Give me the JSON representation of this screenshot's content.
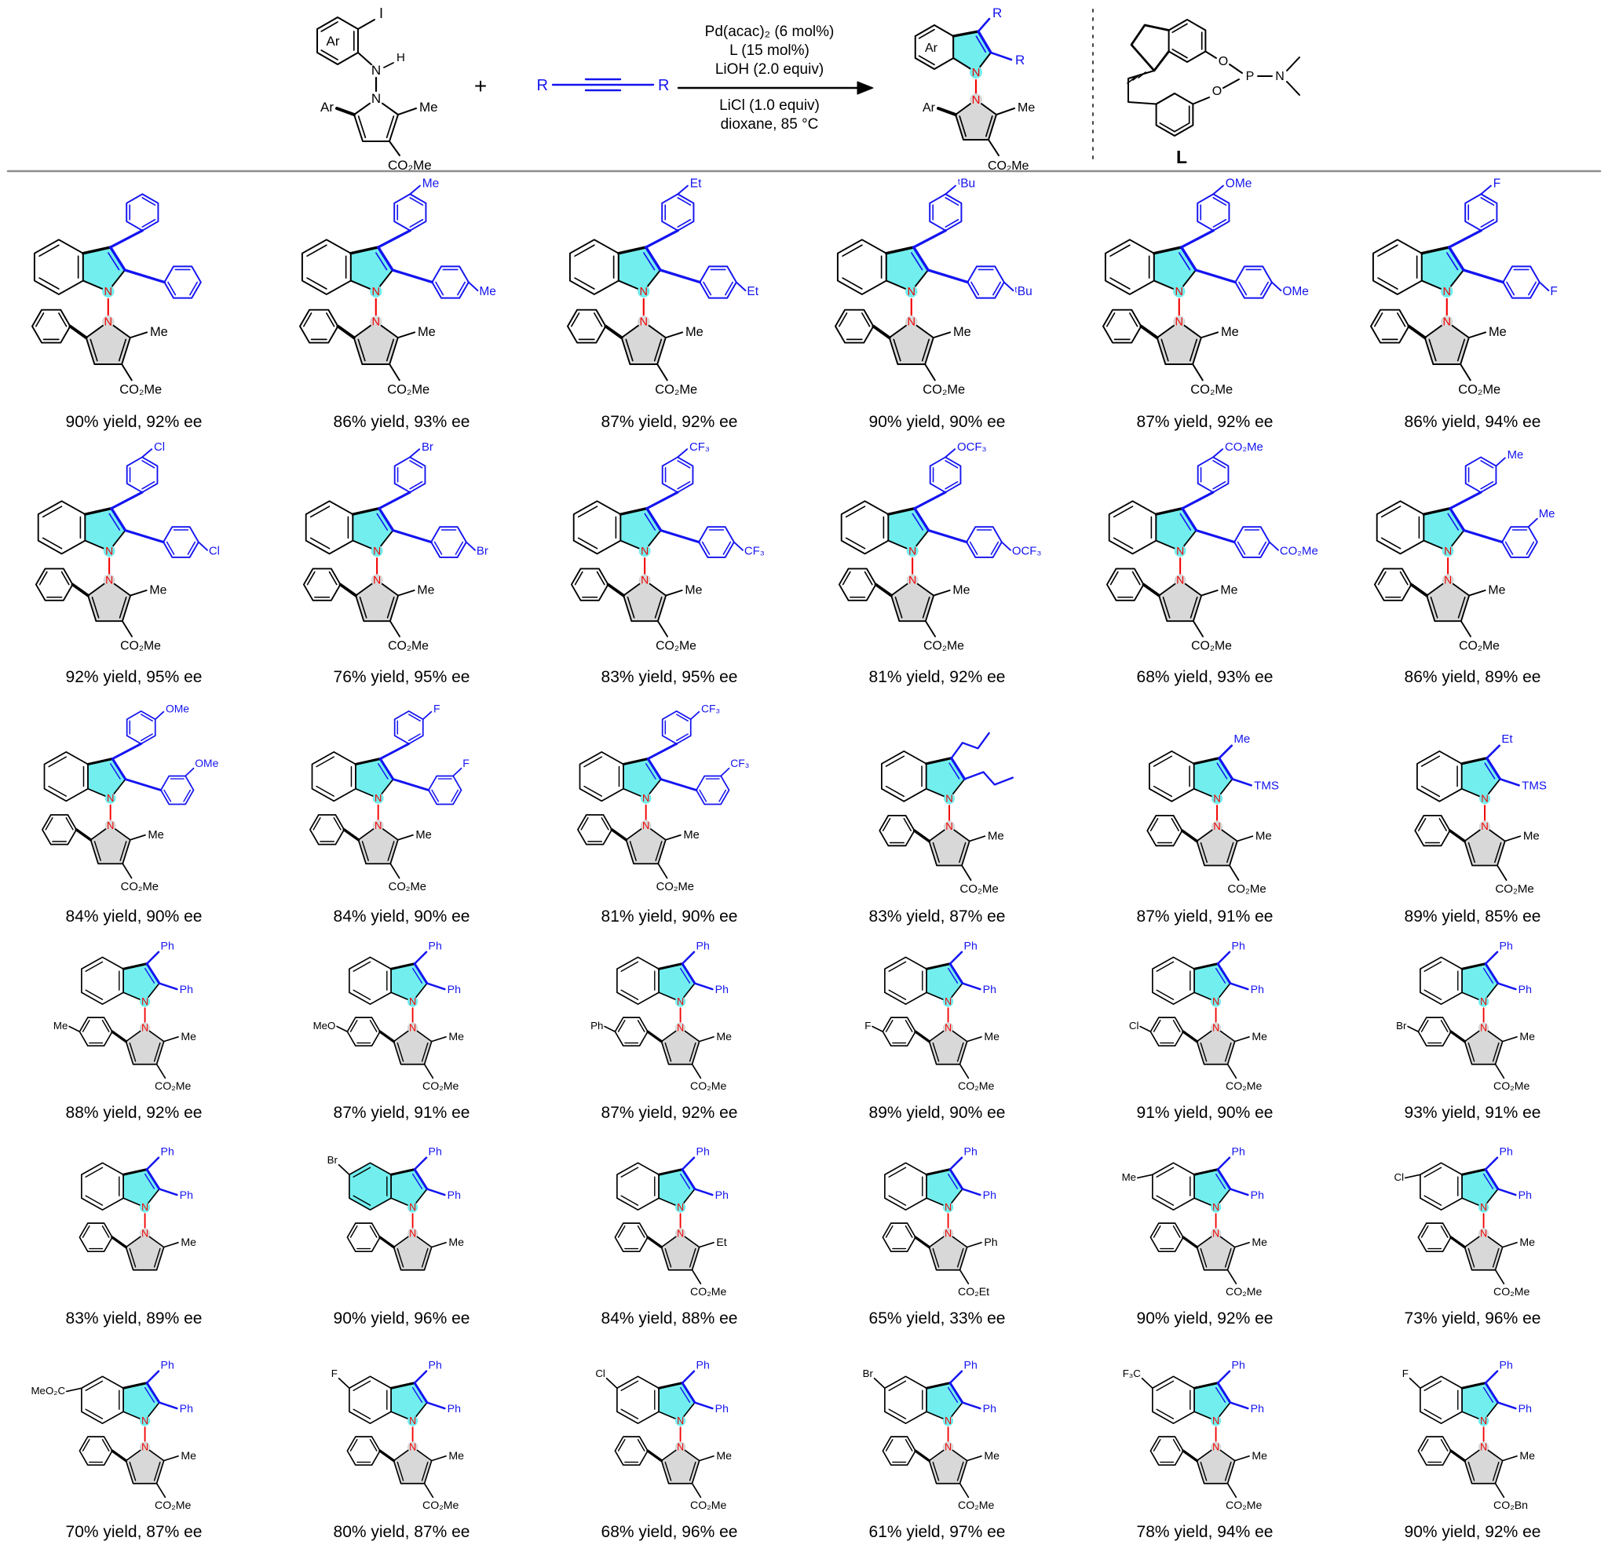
{
  "colors": {
    "blue": "#1414f0",
    "red": "#f20000",
    "cyan": "#72eeee",
    "gray": "#d8d8d8",
    "black": "#000000",
    "divider": "#8c8c8c"
  },
  "atoms": {
    "n": "N"
  },
  "scheme": {
    "substrate": {
      "ring_label": "Ar",
      "halide": "I",
      "amine_n": "N",
      "amine_h": "H",
      "pyrrole_n": "N",
      "aryl": "Ar",
      "methyl": "Me",
      "ester": "CO₂Me"
    },
    "plus": "+",
    "alkyne": {
      "left": "R",
      "right": "R"
    },
    "arrow": {
      "above": [
        "Pd(acac)₂ (6 mol%)",
        "L (15 mol%)",
        "LiOH (2.0 equiv)"
      ],
      "below": [
        "LiCl (1.0 equiv)",
        "dioxane, 85 °C"
      ]
    },
    "product": {
      "ring_label": "Ar",
      "r3": "R",
      "r2": "R",
      "indole_n": "N",
      "pyrrole_n": "N",
      "aryl": "Ar",
      "methyl": "Me",
      "ester": "CO₂Me"
    },
    "ligand": {
      "o_top": "O",
      "o_bottom": "O",
      "p": "P",
      "n": "N",
      "label": "L"
    }
  },
  "compounds": [
    {
      "c3": {
        "kind": "ring",
        "sub": null,
        "pos": null
      },
      "c2": {
        "kind": "ring",
        "sub": null,
        "pos": null
      },
      "n_aryl_sub": null,
      "indole_sub": null,
      "indole_highlight": false,
      "pyrrole_c2": "Me",
      "ester": "CO₂Me",
      "result": "90% yield, 92% ee"
    },
    {
      "c3": {
        "kind": "ring",
        "sub": "Me",
        "pos": "para"
      },
      "c2": {
        "kind": "ring",
        "sub": "Me",
        "pos": "para"
      },
      "n_aryl_sub": null,
      "indole_sub": null,
      "indole_highlight": false,
      "pyrrole_c2": "Me",
      "ester": "CO₂Me",
      "result": "86% yield, 93% ee"
    },
    {
      "c3": {
        "kind": "ring",
        "sub": "Et",
        "pos": "para"
      },
      "c2": {
        "kind": "ring",
        "sub": "Et",
        "pos": "para"
      },
      "n_aryl_sub": null,
      "indole_sub": null,
      "indole_highlight": false,
      "pyrrole_c2": "Me",
      "ester": "CO₂Me",
      "result": "87% yield, 92% ee"
    },
    {
      "c3": {
        "kind": "ring",
        "sub": "ᵗBu",
        "pos": "para"
      },
      "c2": {
        "kind": "ring",
        "sub": "ᵗBu",
        "pos": "para"
      },
      "n_aryl_sub": null,
      "indole_sub": null,
      "indole_highlight": false,
      "pyrrole_c2": "Me",
      "ester": "CO₂Me",
      "result": "90% yield, 90% ee"
    },
    {
      "c3": {
        "kind": "ring",
        "sub": "OMe",
        "pos": "para"
      },
      "c2": {
        "kind": "ring",
        "sub": "OMe",
        "pos": "para"
      },
      "n_aryl_sub": null,
      "indole_sub": null,
      "indole_highlight": false,
      "pyrrole_c2": "Me",
      "ester": "CO₂Me",
      "result": "87% yield, 92% ee"
    },
    {
      "c3": {
        "kind": "ring",
        "sub": "F",
        "pos": "para"
      },
      "c2": {
        "kind": "ring",
        "sub": "F",
        "pos": "para"
      },
      "n_aryl_sub": null,
      "indole_sub": null,
      "indole_highlight": false,
      "pyrrole_c2": "Me",
      "ester": "CO₂Me",
      "result": "86% yield, 94% ee"
    },
    {
      "c3": {
        "kind": "ring",
        "sub": "Cl",
        "pos": "para"
      },
      "c2": {
        "kind": "ring",
        "sub": "Cl",
        "pos": "para"
      },
      "n_aryl_sub": null,
      "indole_sub": null,
      "indole_highlight": false,
      "pyrrole_c2": "Me",
      "ester": "CO₂Me",
      "result": "92% yield, 95% ee"
    },
    {
      "c3": {
        "kind": "ring",
        "sub": "Br",
        "pos": "para"
      },
      "c2": {
        "kind": "ring",
        "sub": "Br",
        "pos": "para"
      },
      "n_aryl_sub": null,
      "indole_sub": null,
      "indole_highlight": false,
      "pyrrole_c2": "Me",
      "ester": "CO₂Me",
      "result": "76% yield, 95% ee"
    },
    {
      "c3": {
        "kind": "ring",
        "sub": "CF₃",
        "pos": "para"
      },
      "c2": {
        "kind": "ring",
        "sub": "CF₃",
        "pos": "para"
      },
      "n_aryl_sub": null,
      "indole_sub": null,
      "indole_highlight": false,
      "pyrrole_c2": "Me",
      "ester": "CO₂Me",
      "result": "83% yield, 95% ee"
    },
    {
      "c3": {
        "kind": "ring",
        "sub": "OCF₃",
        "pos": "para"
      },
      "c2": {
        "kind": "ring",
        "sub": "OCF₃",
        "pos": "para"
      },
      "n_aryl_sub": null,
      "indole_sub": null,
      "indole_highlight": false,
      "pyrrole_c2": "Me",
      "ester": "CO₂Me",
      "result": "81% yield, 92% ee"
    },
    {
      "c3": {
        "kind": "ring",
        "sub": "CO₂Me",
        "pos": "para"
      },
      "c2": {
        "kind": "ring",
        "sub": "CO₂Me",
        "pos": "para"
      },
      "n_aryl_sub": null,
      "indole_sub": null,
      "indole_highlight": false,
      "pyrrole_c2": "Me",
      "ester": "CO₂Me",
      "result": "68% yield, 93% ee"
    },
    {
      "c3": {
        "kind": "ring",
        "sub": "Me",
        "pos": "meta"
      },
      "c2": {
        "kind": "ring",
        "sub": "Me",
        "pos": "meta"
      },
      "n_aryl_sub": null,
      "indole_sub": null,
      "indole_highlight": false,
      "pyrrole_c2": "Me",
      "ester": "CO₂Me",
      "result": "86% yield, 89% ee"
    },
    {
      "c3": {
        "kind": "ring",
        "sub": "OMe",
        "pos": "meta"
      },
      "c2": {
        "kind": "ring",
        "sub": "OMe",
        "pos": "meta"
      },
      "n_aryl_sub": null,
      "indole_sub": null,
      "indole_highlight": false,
      "pyrrole_c2": "Me",
      "ester": "CO₂Me",
      "result": "84% yield, 90% ee"
    },
    {
      "c3": {
        "kind": "ring",
        "sub": "F",
        "pos": "meta"
      },
      "c2": {
        "kind": "ring",
        "sub": "F",
        "pos": "meta"
      },
      "n_aryl_sub": null,
      "indole_sub": null,
      "indole_highlight": false,
      "pyrrole_c2": "Me",
      "ester": "CO₂Me",
      "result": "84% yield, 90% ee"
    },
    {
      "c3": {
        "kind": "ring",
        "sub": "CF₃",
        "pos": "meta"
      },
      "c2": {
        "kind": "ring",
        "sub": "CF₃",
        "pos": "meta"
      },
      "n_aryl_sub": null,
      "indole_sub": null,
      "indole_highlight": false,
      "pyrrole_c2": "Me",
      "ester": "CO₂Me",
      "result": "81% yield, 90% ee"
    },
    {
      "c3": {
        "kind": "chain"
      },
      "c2": {
        "kind": "chain"
      },
      "n_aryl_sub": null,
      "indole_sub": null,
      "indole_highlight": false,
      "pyrrole_c2": "Me",
      "ester": "CO₂Me",
      "result": "83% yield, 87% ee"
    },
    {
      "c3": {
        "kind": "text",
        "label": "Me"
      },
      "c2": {
        "kind": "text",
        "label": "TMS"
      },
      "n_aryl_sub": null,
      "indole_sub": null,
      "indole_highlight": false,
      "pyrrole_c2": "Me",
      "ester": "CO₂Me",
      "result": "87% yield, 91% ee"
    },
    {
      "c3": {
        "kind": "text",
        "label": "Et"
      },
      "c2": {
        "kind": "text",
        "label": "TMS"
      },
      "n_aryl_sub": null,
      "indole_sub": null,
      "indole_highlight": false,
      "pyrrole_c2": "Me",
      "ester": "CO₂Me",
      "result": "89% yield, 85% ee"
    },
    {
      "c3": {
        "kind": "text",
        "label": "Ph"
      },
      "c2": {
        "kind": "text",
        "label": "Ph"
      },
      "n_aryl_sub": "Me",
      "indole_sub": null,
      "indole_highlight": false,
      "pyrrole_c2": "Me",
      "ester": "CO₂Me",
      "result": "88% yield, 92% ee"
    },
    {
      "c3": {
        "kind": "text",
        "label": "Ph"
      },
      "c2": {
        "kind": "text",
        "label": "Ph"
      },
      "n_aryl_sub": "MeO",
      "indole_sub": null,
      "indole_highlight": false,
      "pyrrole_c2": "Me",
      "ester": "CO₂Me",
      "result": "87% yield, 91% ee"
    },
    {
      "c3": {
        "kind": "text",
        "label": "Ph"
      },
      "c2": {
        "kind": "text",
        "label": "Ph"
      },
      "n_aryl_sub": "Ph",
      "indole_sub": null,
      "indole_highlight": false,
      "pyrrole_c2": "Me",
      "ester": "CO₂Me",
      "result": "87% yield, 92% ee"
    },
    {
      "c3": {
        "kind": "text",
        "label": "Ph"
      },
      "c2": {
        "kind": "text",
        "label": "Ph"
      },
      "n_aryl_sub": "F",
      "indole_sub": null,
      "indole_highlight": false,
      "pyrrole_c2": "Me",
      "ester": "CO₂Me",
      "result": "89% yield, 90% ee"
    },
    {
      "c3": {
        "kind": "text",
        "label": "Ph"
      },
      "c2": {
        "kind": "text",
        "label": "Ph"
      },
      "n_aryl_sub": "Cl",
      "indole_sub": null,
      "indole_highlight": false,
      "pyrrole_c2": "Me",
      "ester": "CO₂Me",
      "result": "91% yield, 90% ee"
    },
    {
      "c3": {
        "kind": "text",
        "label": "Ph"
      },
      "c2": {
        "kind": "text",
        "label": "Ph"
      },
      "n_aryl_sub": "Br",
      "indole_sub": null,
      "indole_highlight": false,
      "pyrrole_c2": "Me",
      "ester": "CO₂Me",
      "result": "93% yield, 91% ee"
    },
    {
      "c3": {
        "kind": "text",
        "label": "Ph"
      },
      "c2": {
        "kind": "text",
        "label": "Ph"
      },
      "n_aryl_sub": null,
      "indole_sub": null,
      "indole_highlight": false,
      "pyrrole_c2": "Me",
      "ester": null,
      "result": "83% yield, 89% ee"
    },
    {
      "c3": {
        "kind": "text",
        "label": "Ph"
      },
      "c2": {
        "kind": "text",
        "label": "Ph"
      },
      "n_aryl_sub": null,
      "indole_sub": {
        "label": "Br",
        "pos": "top"
      },
      "indole_highlight": true,
      "pyrrole_c2": "Me",
      "ester": null,
      "result": "90% yield, 96% ee"
    },
    {
      "c3": {
        "kind": "text",
        "label": "Ph"
      },
      "c2": {
        "kind": "text",
        "label": "Ph"
      },
      "n_aryl_sub": null,
      "indole_sub": null,
      "indole_highlight": false,
      "pyrrole_c2": "Et",
      "ester": "CO₂Me",
      "result": "84% yield, 88% ee"
    },
    {
      "c3": {
        "kind": "text",
        "label": "Ph"
      },
      "c2": {
        "kind": "text",
        "label": "Ph"
      },
      "n_aryl_sub": null,
      "indole_sub": null,
      "indole_highlight": false,
      "pyrrole_c2": "Ph",
      "ester": "CO₂Et",
      "result": "65% yield, 33% ee"
    },
    {
      "c3": {
        "kind": "text",
        "label": "Ph"
      },
      "c2": {
        "kind": "text",
        "label": "Ph"
      },
      "n_aryl_sub": null,
      "indole_sub": {
        "label": "Me",
        "pos": "left"
      },
      "indole_highlight": false,
      "pyrrole_c2": "Me",
      "ester": "CO₂Me",
      "result": "90% yield, 92% ee"
    },
    {
      "c3": {
        "kind": "text",
        "label": "Ph"
      },
      "c2": {
        "kind": "text",
        "label": "Ph"
      },
      "n_aryl_sub": null,
      "indole_sub": {
        "label": "Cl",
        "pos": "left"
      },
      "indole_highlight": false,
      "pyrrole_c2": "Me",
      "ester": "CO₂Me",
      "result": "73% yield, 96% ee"
    },
    {
      "c3": {
        "kind": "text",
        "label": "Ph"
      },
      "c2": {
        "kind": "text",
        "label": "Ph"
      },
      "n_aryl_sub": null,
      "indole_sub": {
        "label": "MeO₂C",
        "pos": "left"
      },
      "indole_highlight": false,
      "pyrrole_c2": "Me",
      "ester": "CO₂Me",
      "result": "70% yield, 87% ee"
    },
    {
      "c3": {
        "kind": "text",
        "label": "Ph"
      },
      "c2": {
        "kind": "text",
        "label": "Ph"
      },
      "n_aryl_sub": null,
      "indole_sub": {
        "label": "F",
        "pos": "top"
      },
      "indole_highlight": false,
      "pyrrole_c2": "Me",
      "ester": "CO₂Me",
      "result": "80% yield, 87% ee"
    },
    {
      "c3": {
        "kind": "text",
        "label": "Ph"
      },
      "c2": {
        "kind": "text",
        "label": "Ph"
      },
      "n_aryl_sub": null,
      "indole_sub": {
        "label": "Cl",
        "pos": "top"
      },
      "indole_highlight": false,
      "pyrrole_c2": "Me",
      "ester": "CO₂Me",
      "result": "68% yield, 96% ee"
    },
    {
      "c3": {
        "kind": "text",
        "label": "Ph"
      },
      "c2": {
        "kind": "text",
        "label": "Ph"
      },
      "n_aryl_sub": null,
      "indole_sub": {
        "label": "Br",
        "pos": "top"
      },
      "indole_highlight": false,
      "pyrrole_c2": "Me",
      "ester": "CO₂Me",
      "result": "61% yield, 97% ee"
    },
    {
      "c3": {
        "kind": "text",
        "label": "Ph"
      },
      "c2": {
        "kind": "text",
        "label": "Ph"
      },
      "n_aryl_sub": null,
      "indole_sub": {
        "label": "F₃C",
        "pos": "top"
      },
      "indole_highlight": false,
      "pyrrole_c2": "Me",
      "ester": "CO₂Me",
      "result": "78% yield, 94% ee"
    },
    {
      "c3": {
        "kind": "text",
        "label": "Ph"
      },
      "c2": {
        "kind": "text",
        "label": "Ph"
      },
      "n_aryl_sub": null,
      "indole_sub": {
        "label": "F",
        "pos": "top"
      },
      "indole_highlight": false,
      "pyrrole_c2": "Me",
      "ester": "CO₂Bn",
      "result": "90% yield, 92% ee"
    }
  ]
}
